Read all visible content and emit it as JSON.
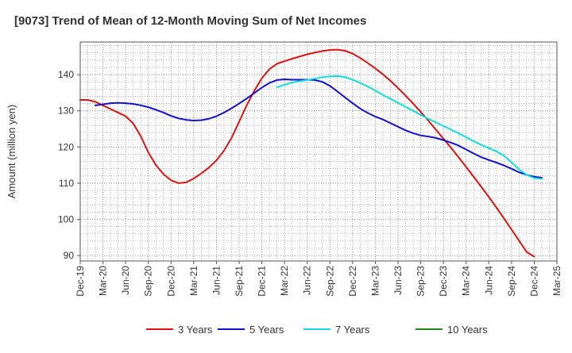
{
  "chart_data": {
    "type": "line",
    "title": "[9073]  Trend of Mean of 12-Month Moving Sum of Net Incomes",
    "xlabel": "",
    "ylabel": "Amount (million yen)",
    "x_ticks": [
      "Dec-19",
      "Mar-20",
      "Jun-20",
      "Sep-20",
      "Dec-20",
      "Mar-21",
      "Jun-21",
      "Sep-21",
      "Dec-21",
      "Mar-22",
      "Jun-22",
      "Sep-22",
      "Dec-22",
      "Mar-23",
      "Jun-23",
      "Sep-23",
      "Dec-23",
      "Mar-24",
      "Jun-24",
      "Sep-24",
      "Dec-24",
      "Mar-25"
    ],
    "y_ticks": [
      90,
      100,
      110,
      120,
      130,
      140
    ],
    "ylim": [
      88.5,
      149
    ],
    "xlim_months": [
      0,
      63
    ],
    "grid": true,
    "legend_position": "bottom",
    "series": [
      {
        "name": "3 Years",
        "color": "#dd1111",
        "points": [
          [
            0,
            133
          ],
          [
            1,
            133
          ],
          [
            2,
            132.5
          ],
          [
            3,
            131.5
          ],
          [
            4,
            130.5
          ],
          [
            5,
            129.5
          ],
          [
            6,
            128.5
          ],
          [
            7,
            126.5
          ],
          [
            8,
            123
          ],
          [
            9,
            118.5
          ],
          [
            10,
            115
          ],
          [
            11,
            112.5
          ],
          [
            12,
            110.8
          ],
          [
            13,
            110
          ],
          [
            14,
            110.2
          ],
          [
            15,
            111.3
          ],
          [
            16,
            112.7
          ],
          [
            17,
            114.3
          ],
          [
            18,
            116.3
          ],
          [
            19,
            119
          ],
          [
            20,
            122.5
          ],
          [
            21,
            127
          ],
          [
            22,
            131.5
          ],
          [
            23,
            135.5
          ],
          [
            24,
            139
          ],
          [
            25,
            141.5
          ],
          [
            26,
            143
          ],
          [
            27,
            143.7
          ],
          [
            28,
            144.4
          ],
          [
            29,
            145
          ],
          [
            30,
            145.6
          ],
          [
            31,
            146.1
          ],
          [
            32,
            146.5
          ],
          [
            33,
            146.8
          ],
          [
            34,
            146.9
          ],
          [
            35,
            146.6
          ],
          [
            36,
            145.8
          ],
          [
            37,
            144.6
          ],
          [
            38,
            143.2
          ],
          [
            39,
            141.7
          ],
          [
            40,
            140.1
          ],
          [
            41,
            138.3
          ],
          [
            42,
            136.3
          ],
          [
            43,
            134.2
          ],
          [
            44,
            132
          ],
          [
            45,
            129.7
          ],
          [
            46,
            127.3
          ],
          [
            47,
            124.8
          ],
          [
            48,
            122.3
          ],
          [
            49,
            119.8
          ],
          [
            50,
            117.2
          ],
          [
            51,
            114.5
          ],
          [
            52,
            111.8
          ],
          [
            53,
            109
          ],
          [
            54,
            106.2
          ],
          [
            55,
            103.3
          ],
          [
            56,
            100.3
          ],
          [
            57,
            97.2
          ],
          [
            58,
            94.1
          ],
          [
            59,
            91
          ],
          [
            60,
            89.7
          ]
        ]
      },
      {
        "name": "5 Years",
        "color": "#1111cc",
        "points": [
          [
            2,
            131.5
          ],
          [
            3,
            131.8
          ],
          [
            4,
            132.1
          ],
          [
            5,
            132.2
          ],
          [
            6,
            132.1
          ],
          [
            7,
            131.9
          ],
          [
            8,
            131.5
          ],
          [
            9,
            131
          ],
          [
            10,
            130.3
          ],
          [
            11,
            129.5
          ],
          [
            12,
            128.6
          ],
          [
            13,
            127.9
          ],
          [
            14,
            127.5
          ],
          [
            15,
            127.3
          ],
          [
            16,
            127.4
          ],
          [
            17,
            127.8
          ],
          [
            18,
            128.5
          ],
          [
            19,
            129.5
          ],
          [
            20,
            130.7
          ],
          [
            21,
            132
          ],
          [
            22,
            133.4
          ],
          [
            23,
            134.9
          ],
          [
            24,
            136.4
          ],
          [
            25,
            137.7
          ],
          [
            26,
            138.5
          ],
          [
            27,
            138.7
          ],
          [
            28,
            138.6
          ],
          [
            29,
            138.6
          ],
          [
            30,
            138.6
          ],
          [
            31,
            138.5
          ],
          [
            32,
            138
          ],
          [
            33,
            136.9
          ],
          [
            34,
            135.3
          ],
          [
            35,
            133.7
          ],
          [
            36,
            132.1
          ],
          [
            37,
            130.6
          ],
          [
            38,
            129.4
          ],
          [
            39,
            128.4
          ],
          [
            40,
            127.6
          ],
          [
            41,
            126.6
          ],
          [
            42,
            125.6
          ],
          [
            43,
            124.6
          ],
          [
            44,
            123.8
          ],
          [
            45,
            123.2
          ],
          [
            46,
            122.9
          ],
          [
            47,
            122.5
          ],
          [
            48,
            121.9
          ],
          [
            49,
            121.2
          ],
          [
            50,
            120.4
          ],
          [
            51,
            119.3
          ],
          [
            52,
            118.2
          ],
          [
            53,
            117.2
          ],
          [
            54,
            116.4
          ],
          [
            55,
            115.7
          ],
          [
            56,
            114.9
          ],
          [
            57,
            114
          ],
          [
            58,
            113
          ],
          [
            59,
            112.3
          ],
          [
            60,
            111.8
          ],
          [
            61,
            111.5
          ]
        ]
      },
      {
        "name": "7 Years",
        "color": "#11dddd",
        "points": [
          [
            26,
            136.5
          ],
          [
            27,
            137.2
          ],
          [
            28,
            137.8
          ],
          [
            29,
            138.2
          ],
          [
            30,
            138.5
          ],
          [
            31,
            138.9
          ],
          [
            32,
            139.3
          ],
          [
            33,
            139.5
          ],
          [
            34,
            139.6
          ],
          [
            35,
            139.3
          ],
          [
            36,
            138.6
          ],
          [
            37,
            137.7
          ],
          [
            38,
            136.7
          ],
          [
            39,
            135.6
          ],
          [
            40,
            134.4
          ],
          [
            41,
            133.3
          ],
          [
            42,
            132.2
          ],
          [
            43,
            131.1
          ],
          [
            44,
            130
          ],
          [
            45,
            128.9
          ],
          [
            46,
            127.8
          ],
          [
            47,
            126.8
          ],
          [
            48,
            125.8
          ],
          [
            49,
            124.8
          ],
          [
            50,
            123.8
          ],
          [
            51,
            122.7
          ],
          [
            52,
            121.6
          ],
          [
            53,
            120.6
          ],
          [
            54,
            119.7
          ],
          [
            55,
            118.8
          ],
          [
            56,
            117.6
          ],
          [
            57,
            115.8
          ],
          [
            58,
            113.8
          ],
          [
            59,
            112.3
          ],
          [
            60,
            111.4
          ],
          [
            61,
            111.2
          ]
        ]
      },
      {
        "name": "10 Years",
        "color": "#228822",
        "points": []
      }
    ]
  }
}
